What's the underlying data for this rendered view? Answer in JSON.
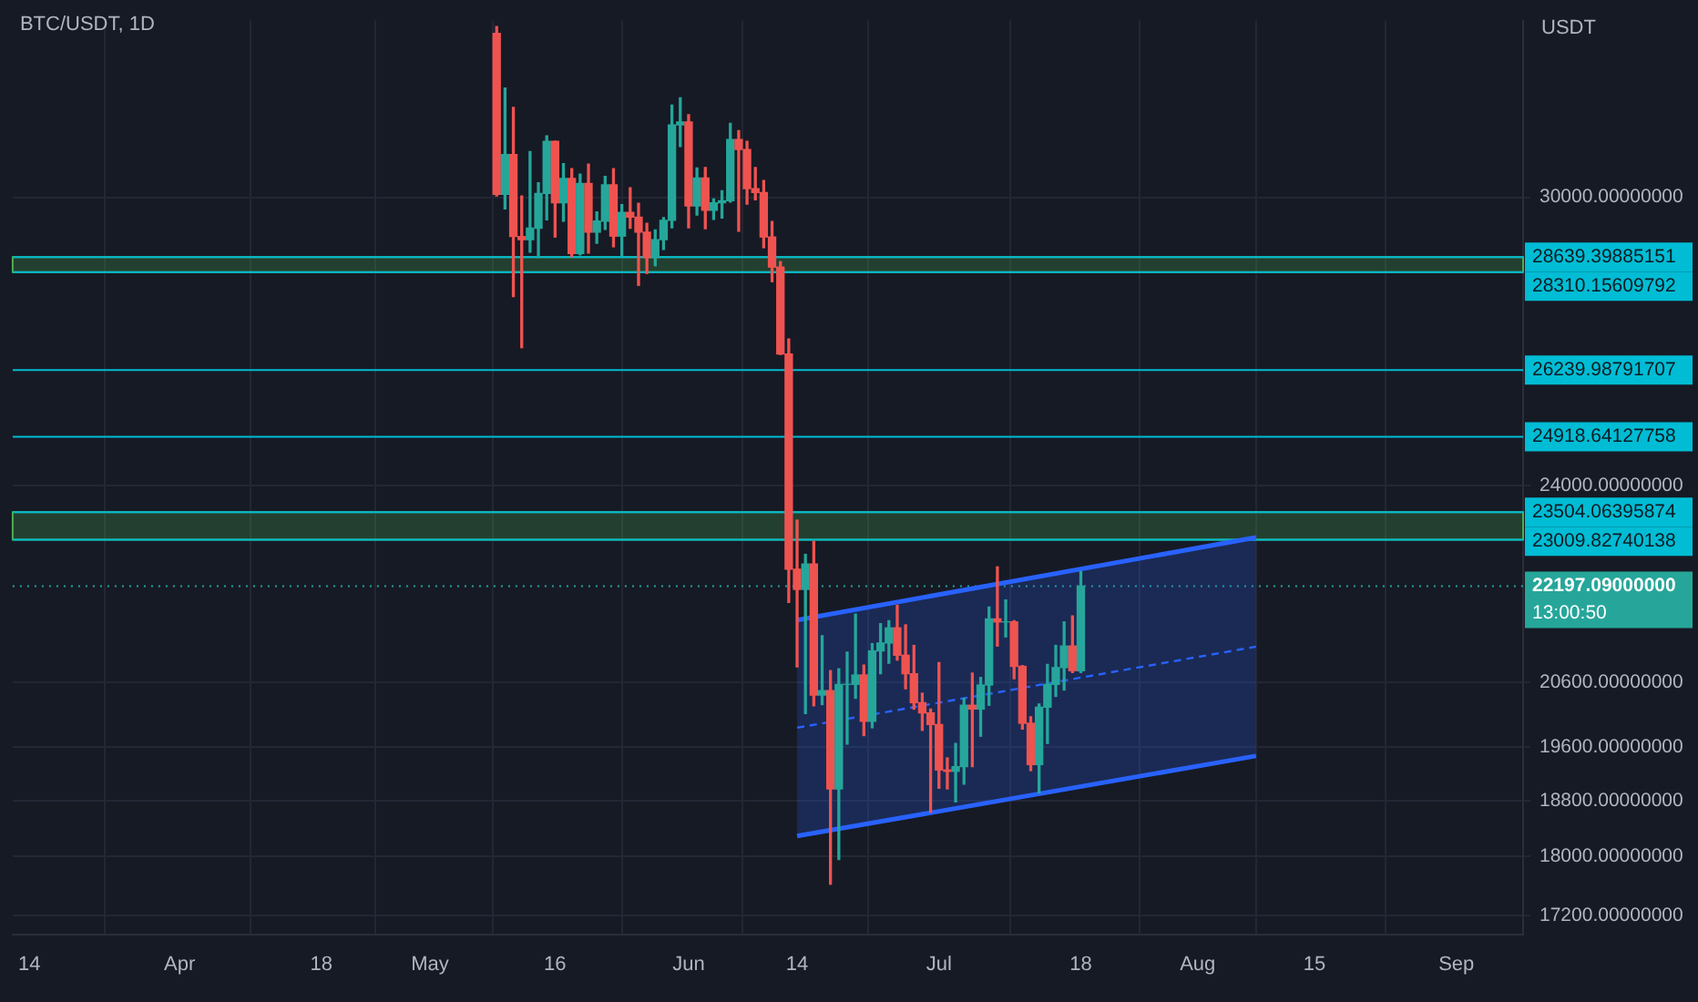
{
  "chart_data": {
    "type": "candlestick",
    "title": "BTC/USDT, 1D",
    "ylabel": "USDT",
    "x": [
      "--05-09",
      "--05-10",
      "--05-11",
      "--05-12",
      "--05-13",
      "--05-14",
      "--05-15",
      "--05-16",
      "--05-17",
      "--05-18",
      "--05-19",
      "--05-20",
      "--05-21",
      "--05-22",
      "--05-23",
      "--05-24",
      "--05-25",
      "--05-26",
      "--05-27",
      "--05-28",
      "--05-29",
      "--05-30",
      "--05-31",
      "--06-01",
      "--06-02",
      "--06-03",
      "--06-04",
      "--06-05",
      "--06-06",
      "--06-07",
      "--06-08",
      "--06-09",
      "--06-10",
      "--06-11",
      "--06-12",
      "--06-13",
      "--06-14",
      "--06-15",
      "--06-16",
      "--06-17",
      "--06-18",
      "--06-19",
      "--06-20",
      "--06-21",
      "--06-22",
      "--06-23",
      "--06-24",
      "--06-25",
      "--06-26",
      "--06-27",
      "--06-28",
      "--06-29",
      "--06-30",
      "--07-01",
      "--07-02",
      "--07-03",
      "--07-04",
      "--07-05",
      "--07-06",
      "--07-07",
      "--07-08",
      "--07-09",
      "--07-10",
      "--07-11",
      "--07-12",
      "--07-13",
      "--07-14",
      "--07-15",
      "--07-16",
      "--07-17",
      "--07-18"
    ],
    "ohlc": [
      [
        34060,
        34240,
        30030,
        30070
      ],
      [
        30070,
        32650,
        29730,
        31010
      ],
      [
        31010,
        32160,
        27780,
        29100
      ],
      [
        29100,
        30030,
        26700,
        29030
      ],
      [
        29030,
        31080,
        28750,
        29290
      ],
      [
        29290,
        30340,
        28630,
        30090
      ],
      [
        30090,
        31460,
        29480,
        31330
      ],
      [
        31330,
        31330,
        29090,
        29870
      ],
      [
        29870,
        30790,
        29450,
        30440
      ],
      [
        30440,
        30670,
        28650,
        28720
      ],
      [
        28720,
        30540,
        28690,
        30320
      ],
      [
        30320,
        30780,
        28730,
        29200
      ],
      [
        29200,
        29660,
        28950,
        29450
      ],
      [
        29450,
        30490,
        29260,
        30290
      ],
      [
        30290,
        30670,
        28870,
        29110
      ],
      [
        29110,
        29830,
        28670,
        29650
      ],
      [
        29650,
        30220,
        29290,
        29540
      ],
      [
        29540,
        29860,
        28020,
        29200
      ],
      [
        29200,
        29400,
        28280,
        28630
      ],
      [
        28630,
        29250,
        28450,
        29030
      ],
      [
        29030,
        29530,
        28810,
        29470
      ],
      [
        29470,
        32220,
        29300,
        31730
      ],
      [
        31730,
        32400,
        31200,
        31800
      ],
      [
        31800,
        31980,
        29300,
        29800
      ],
      [
        29800,
        30690,
        29590,
        30450
      ],
      [
        30450,
        30700,
        29280,
        29700
      ],
      [
        29700,
        29960,
        29490,
        29870
      ],
      [
        29870,
        30150,
        29520,
        29920
      ],
      [
        29920,
        31770,
        29890,
        31370
      ],
      [
        31370,
        31590,
        29220,
        31130
      ],
      [
        31130,
        31330,
        29840,
        30200
      ],
      [
        30200,
        30700,
        29940,
        30110
      ],
      [
        30110,
        30390,
        28850,
        29090
      ],
      [
        29090,
        29440,
        28100,
        28420
      ],
      [
        28420,
        28540,
        26560,
        26570
      ],
      [
        26570,
        26880,
        21920,
        22490
      ],
      [
        22490,
        23360,
        20850,
        22140
      ],
      [
        22140,
        22750,
        20110,
        22580
      ],
      [
        22580,
        22980,
        20230,
        20400
      ],
      [
        20400,
        21360,
        20250,
        20470
      ],
      [
        20470,
        20790,
        17620,
        18970
      ],
      [
        18970,
        20820,
        17960,
        20570
      ],
      [
        20570,
        21090,
        19640,
        20570
      ],
      [
        20570,
        21720,
        20350,
        20720
      ],
      [
        20720,
        20880,
        19770,
        19990
      ],
      [
        19990,
        21230,
        19890,
        21110
      ],
      [
        21110,
        21560,
        20740,
        21240
      ],
      [
        21240,
        21610,
        20910,
        21490
      ],
      [
        21490,
        21870,
        20960,
        21040
      ],
      [
        21040,
        21540,
        20500,
        20740
      ],
      [
        20740,
        21200,
        20180,
        20280
      ],
      [
        20280,
        20430,
        19850,
        20120
      ],
      [
        20120,
        20180,
        18630,
        19940
      ],
      [
        19940,
        20920,
        18980,
        19250
      ],
      [
        19250,
        19430,
        18970,
        19230
      ],
      [
        19230,
        19650,
        18780,
        19300
      ],
      [
        19300,
        20350,
        19040,
        20240
      ],
      [
        20240,
        20750,
        19300,
        20180
      ],
      [
        20180,
        20680,
        19760,
        20560
      ],
      [
        20560,
        21840,
        20240,
        21640
      ],
      [
        21640,
        22530,
        21190,
        21590
      ],
      [
        21590,
        21960,
        21340,
        21590
      ],
      [
        21590,
        21610,
        20660,
        20860
      ],
      [
        20860,
        20870,
        19870,
        19960
      ],
      [
        19960,
        20060,
        19240,
        19330
      ],
      [
        19330,
        20260,
        18910,
        20210
      ],
      [
        20210,
        20890,
        19650,
        20570
      ],
      [
        20570,
        21200,
        20380,
        20840
      ],
      [
        20840,
        21590,
        20480,
        21190
      ],
      [
        21190,
        21690,
        20760,
        20790
      ],
      [
        20790,
        22450,
        20760,
        22197.09
      ]
    ],
    "series": [
      {
        "type": "line",
        "color": "#2962ff",
        "line_style": "dashed",
        "x": [
          "--06-14",
          "--08-08"
        ],
        "values": [
          19890,
          21180
        ],
        "lower": [
          18290,
          19460
        ],
        "upper": [
          21620,
          23050
        ]
      },
      {
        "type": "line",
        "color": "#2962ff",
        "x": [
          "--06-14",
          "--08-08"
        ],
        "values": [
          21620,
          23050
        ]
      },
      {
        "type": "line",
        "color": "#2962ff",
        "x": [
          "--06-14",
          "--08-08"
        ],
        "values": [
          18290,
          19460
        ]
      }
    ],
    "xlim": [
      "--03-12",
      "--09-09"
    ],
    "xticks": [
      {
        "value": "--03-14",
        "label": "14"
      },
      {
        "value": "--04-01",
        "label": "Apr"
      },
      {
        "value": "--04-18",
        "label": "18"
      },
      {
        "value": "--05-01",
        "label": "May"
      },
      {
        "value": "--05-16",
        "label": "16"
      },
      {
        "value": "--06-01",
        "label": "Jun"
      },
      {
        "value": "--06-14",
        "label": "14"
      },
      {
        "value": "--07-01",
        "label": "Jul"
      },
      {
        "value": "--07-18",
        "label": "18"
      },
      {
        "value": "--08-01",
        "label": "Aug"
      },
      {
        "value": "--08-15",
        "label": "15"
      },
      {
        "value": "--09-01",
        "label": "Sep"
      }
    ],
    "ylim": [
      16950,
      34400
    ],
    "log": true,
    "yticks": [
      {
        "value": 17200,
        "label": "17200.00000000"
      },
      {
        "value": 18000,
        "label": "18000.00000000"
      },
      {
        "value": 18800,
        "label": "18800.00000000"
      },
      {
        "value": 19600,
        "label": "19600.00000000"
      },
      {
        "value": 20600,
        "label": "20600.00000000"
      },
      {
        "value": 24000,
        "label": "24000.00000000"
      },
      {
        "value": 30000,
        "label": "30000.00000000"
      }
    ],
    "grid": true,
    "bands": [
      {
        "axis": "y",
        "from": 28310.15609792,
        "to": 28639.39885151,
        "color": "#4caf50"
      },
      {
        "axis": "y",
        "from": 23009.82740138,
        "to": 23504.06395874,
        "color": "#4caf50"
      }
    ],
    "ref_lines": [
      {
        "axis": "y",
        "value": 28639.39885151,
        "label": "28639.39885151",
        "color": "#00bcd4"
      },
      {
        "axis": "y",
        "value": 28310.15609792,
        "label": "28310.15609792",
        "color": "#00bcd4"
      },
      {
        "axis": "y",
        "value": 26239.98791707,
        "label": "26239.98791707",
        "color": "#00bcd4"
      },
      {
        "axis": "y",
        "value": 24918.64127758,
        "label": "24918.64127758",
        "color": "#00bcd4"
      },
      {
        "axis": "y",
        "value": 23504.06395874,
        "label": "23504.06395874",
        "color": "#00bcd4"
      },
      {
        "axis": "y",
        "value": 23009.82740138,
        "label": "23009.82740138",
        "color": "#00bcd4"
      },
      {
        "axis": "y",
        "value": 22197.09,
        "label": "22197.09000000",
        "color": "#26a69a",
        "line_style": "dotted"
      }
    ],
    "annotations": [
      "13:00:50"
    ]
  }
}
